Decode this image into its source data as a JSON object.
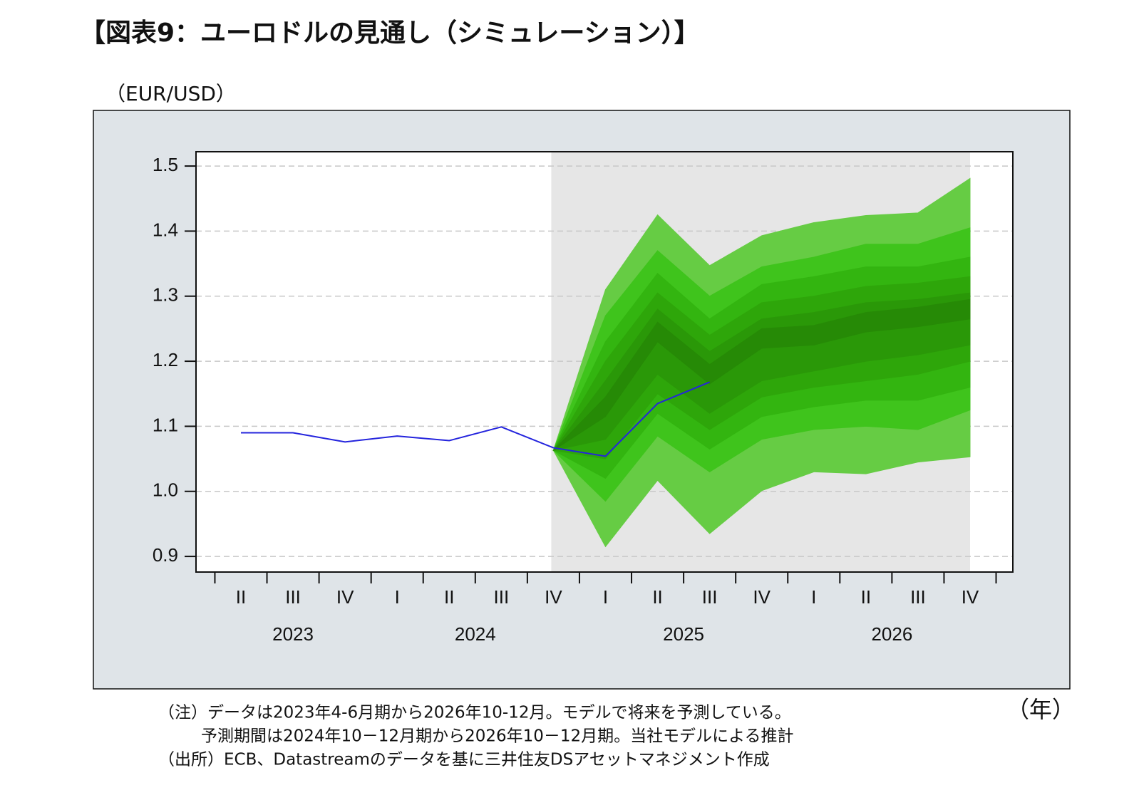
{
  "chart_data": {
    "type": "fan",
    "title": "【図表9：ユーロドルの見通し（シミュレーション）】",
    "y_label": "（EUR/USD）",
    "x_label": "（年）",
    "notes": [
      "（注）データは2023年4-6月期から2026年10-12月。モデルで将来を予測している。",
      "予測期間は2024年10－12月期から2026年10－12月期。当社モデルによる推計",
      "（出所）ECB、Datastreamのデータを基に三井住友DSアセットマネジメント作成"
    ],
    "categories": [
      "II",
      "III",
      "IV",
      "I",
      "II",
      "III",
      "IV",
      "I",
      "II",
      "III",
      "IV",
      "I",
      "II",
      "III",
      "IV"
    ],
    "year_labels": [
      "2023",
      null,
      null,
      "2024",
      null,
      null,
      null,
      "2025",
      null,
      null,
      null,
      "2026",
      null,
      null,
      null
    ],
    "ylim": [
      0.876,
      1.522
    ],
    "yticks": [
      0.9,
      {
        "value": 1,
        "label": "1.0"
      },
      1.1,
      1.2,
      1.3,
      1.4,
      1.5
    ],
    "grid": true,
    "forecast_shade_color": "#e6e6e6",
    "series": [
      {
        "color": "#2424dd",
        "values": [
          1.09,
          1.09,
          1.076,
          1.085,
          1.078,
          1.099,
          1.067,
          1.054,
          1.135,
          1.168,
          null,
          null,
          null,
          null,
          null
        ]
      }
    ],
    "fan": [
      {
        "color": "#66cc44",
        "upper": [
          null,
          null,
          null,
          null,
          null,
          null,
          1.063,
          1.31,
          1.425,
          1.347,
          1.393,
          1.413,
          1.424,
          1.428,
          1.481
        ],
        "lower": [
          null,
          null,
          null,
          null,
          null,
          null,
          1.063,
          0.915,
          1.017,
          0.935,
          1.001,
          1.03,
          1.027,
          1.045,
          1.053
        ]
      },
      {
        "color": "#3fc41c",
        "upper": [
          null,
          null,
          null,
          null,
          null,
          null,
          1.063,
          1.27,
          1.37,
          1.3,
          1.345,
          1.36,
          1.38,
          1.38,
          1.405
        ],
        "lower": [
          null,
          null,
          null,
          null,
          null,
          null,
          1.063,
          0.985,
          1.085,
          1.03,
          1.08,
          1.095,
          1.1,
          1.095,
          1.125
        ]
      },
      {
        "color": "#33b510",
        "upper": [
          null,
          null,
          null,
          null,
          null,
          null,
          1.063,
          1.23,
          1.335,
          1.265,
          1.318,
          1.33,
          1.345,
          1.345,
          1.36
        ],
        "lower": [
          null,
          null,
          null,
          null,
          null,
          null,
          1.063,
          1.02,
          1.12,
          1.065,
          1.115,
          1.13,
          1.14,
          1.14,
          1.16
        ]
      },
      {
        "color": "#2ea60a",
        "upper": [
          null,
          null,
          null,
          null,
          null,
          null,
          1.063,
          1.2,
          1.305,
          1.24,
          1.29,
          1.3,
          1.315,
          1.32,
          1.33
        ],
        "lower": [
          null,
          null,
          null,
          null,
          null,
          null,
          1.063,
          1.05,
          1.15,
          1.095,
          1.145,
          1.16,
          1.17,
          1.18,
          1.2
        ]
      },
      {
        "color": "#2a9808",
        "upper": [
          null,
          null,
          null,
          null,
          null,
          null,
          1.063,
          1.17,
          1.28,
          1.215,
          1.265,
          1.275,
          1.29,
          1.295,
          1.305
        ],
        "lower": [
          null,
          null,
          null,
          null,
          null,
          null,
          1.063,
          1.08,
          1.18,
          1.12,
          1.17,
          1.185,
          1.2,
          1.21,
          1.225
        ]
      },
      {
        "color": "#268a06",
        "upper": [
          null,
          null,
          null,
          null,
          null,
          null,
          1.063,
          1.145,
          1.26,
          1.195,
          1.25,
          1.255,
          1.275,
          1.283,
          1.295
        ],
        "lower": [
          null,
          null,
          null,
          null,
          null,
          null,
          1.063,
          1.115,
          1.23,
          1.165,
          1.22,
          1.225,
          1.245,
          1.253,
          1.265
        ]
      }
    ]
  }
}
